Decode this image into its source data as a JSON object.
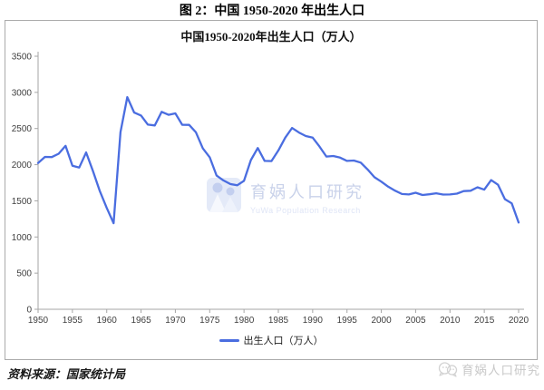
{
  "figure": {
    "title": "图 2：中国 1950-2020 年出生人口",
    "source": "资料来源：国家统计局"
  },
  "watermark": {
    "brand": "育娲人口研究",
    "brand_en": "YuWa Population Research",
    "corner_brand": "育娲人口研究",
    "logo_icon": "yuwa-family-logo-icon",
    "corner_icon": "wechat-chat-bubbles-icon",
    "brand_color": "#c9d2ea",
    "corner_color": "#c9c9c9"
  },
  "chart_data": {
    "type": "line",
    "title": "中国1950-2020年出生人口（万人）",
    "xlabel": "",
    "ylabel": "",
    "legend": [
      "出生人口（万人）"
    ],
    "legend_position": "bottom",
    "grid": false,
    "xlim": [
      1950,
      2020
    ],
    "ylim": [
      0,
      3500
    ],
    "xtick_step": 5,
    "ytick_step": 500,
    "line_color": "#4a6de0",
    "axis_color": "#a6a6a6",
    "tick_label_color": "#3f3f3f",
    "x": [
      1950,
      1951,
      1952,
      1953,
      1954,
      1955,
      1956,
      1957,
      1958,
      1959,
      1960,
      1961,
      1962,
      1963,
      1964,
      1965,
      1966,
      1967,
      1968,
      1969,
      1970,
      1971,
      1972,
      1973,
      1974,
      1975,
      1976,
      1977,
      1978,
      1979,
      1980,
      1981,
      1982,
      1983,
      1984,
      1985,
      1986,
      1987,
      1988,
      1989,
      1990,
      1991,
      1992,
      1993,
      1994,
      1995,
      1996,
      1997,
      1998,
      1999,
      2000,
      2001,
      2002,
      2003,
      2004,
      2005,
      2006,
      2007,
      2008,
      2009,
      2010,
      2011,
      2012,
      2013,
      2014,
      2015,
      2016,
      2017,
      2018,
      2019,
      2020
    ],
    "series": [
      {
        "name": "出生人口（万人）",
        "values": [
          2023,
          2107,
          2105,
          2151,
          2260,
          1984,
          1961,
          2169,
          1909,
          1635,
          1402,
          1190,
          2451,
          2934,
          2721,
          2679,
          2554,
          2543,
          2731,
          2690,
          2710,
          2551,
          2550,
          2447,
          2226,
          2102,
          1849,
          1783,
          1733,
          1715,
          1776,
          2064,
          2230,
          2052,
          2050,
          2196,
          2374,
          2508,
          2445,
          2396,
          2374,
          2250,
          2113,
          2120,
          2098,
          2052,
          2057,
          2028,
          1934,
          1827,
          1765,
          1696,
          1641,
          1594,
          1588,
          1612,
          1581,
          1591,
          1604,
          1587,
          1588,
          1600,
          1635,
          1640,
          1687,
          1655,
          1786,
          1723,
          1523,
          1465,
          1200
        ]
      }
    ]
  }
}
